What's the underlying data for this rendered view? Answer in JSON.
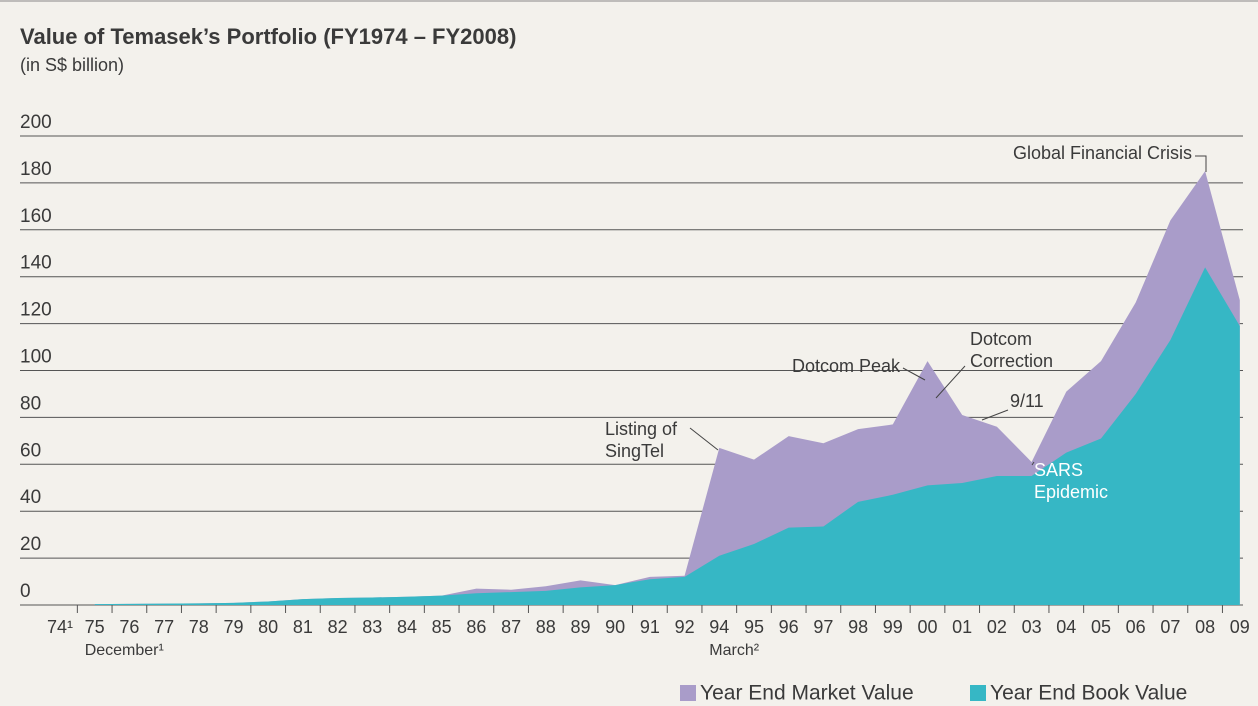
{
  "chart_data": {
    "type": "area",
    "title": "Value of Temasek’s Portfolio (FY1974 – FY2008)",
    "subtitle": "(in S$ billion)",
    "categories": [
      "74¹",
      "75",
      "76",
      "77",
      "78",
      "79",
      "80",
      "81",
      "82",
      "83",
      "84",
      "85",
      "86",
      "87",
      "88",
      "89",
      "90",
      "91",
      "92",
      "94",
      "95",
      "96",
      "97",
      "98",
      "99",
      "00",
      "01",
      "02",
      "03",
      "04",
      "05",
      "06",
      "07",
      "08",
      "09"
    ],
    "x_notes": [
      {
        "at": "75",
        "label": "December¹"
      },
      {
        "at": "94",
        "label": "March²"
      }
    ],
    "series": [
      {
        "name": "Year End Market Value",
        "color": "#a99cc9",
        "values": [
          null,
          0.35,
          0.5,
          0.6,
          0.7,
          0.9,
          1.5,
          2.5,
          3,
          3.2,
          3.5,
          4,
          7,
          6.5,
          8,
          10.5,
          8.5,
          12,
          12.5,
          67,
          62,
          72,
          69,
          75,
          77,
          104,
          81,
          76,
          61,
          91,
          104,
          129,
          164,
          185,
          130
        ]
      },
      {
        "name": "Year End Book Value",
        "color": "#36b7c5",
        "values": [
          null,
          0.35,
          0.5,
          0.6,
          0.7,
          0.9,
          1.5,
          2.5,
          3,
          3.2,
          3.5,
          4,
          5,
          5.5,
          6,
          7.5,
          8.5,
          11,
          12,
          21,
          26,
          33,
          33.5,
          44,
          47,
          51,
          52,
          55,
          55,
          65,
          71,
          90,
          113,
          144,
          119
        ]
      }
    ],
    "ylim": [
      0,
      200
    ],
    "yticks": [
      0,
      20,
      40,
      60,
      80,
      100,
      120,
      140,
      160,
      180,
      200
    ],
    "grid": true,
    "annotations": [
      {
        "lines": [
          "Listing of",
          "SingTel"
        ]
      },
      {
        "lines": [
          "Dotcom Peak"
        ]
      },
      {
        "lines": [
          "Dotcom",
          "Correction"
        ]
      },
      {
        "lines": [
          "9/11"
        ]
      },
      {
        "lines": [
          "SARS",
          "Epidemic"
        ]
      },
      {
        "lines": [
          "Global Financial Crisis"
        ]
      }
    ]
  }
}
